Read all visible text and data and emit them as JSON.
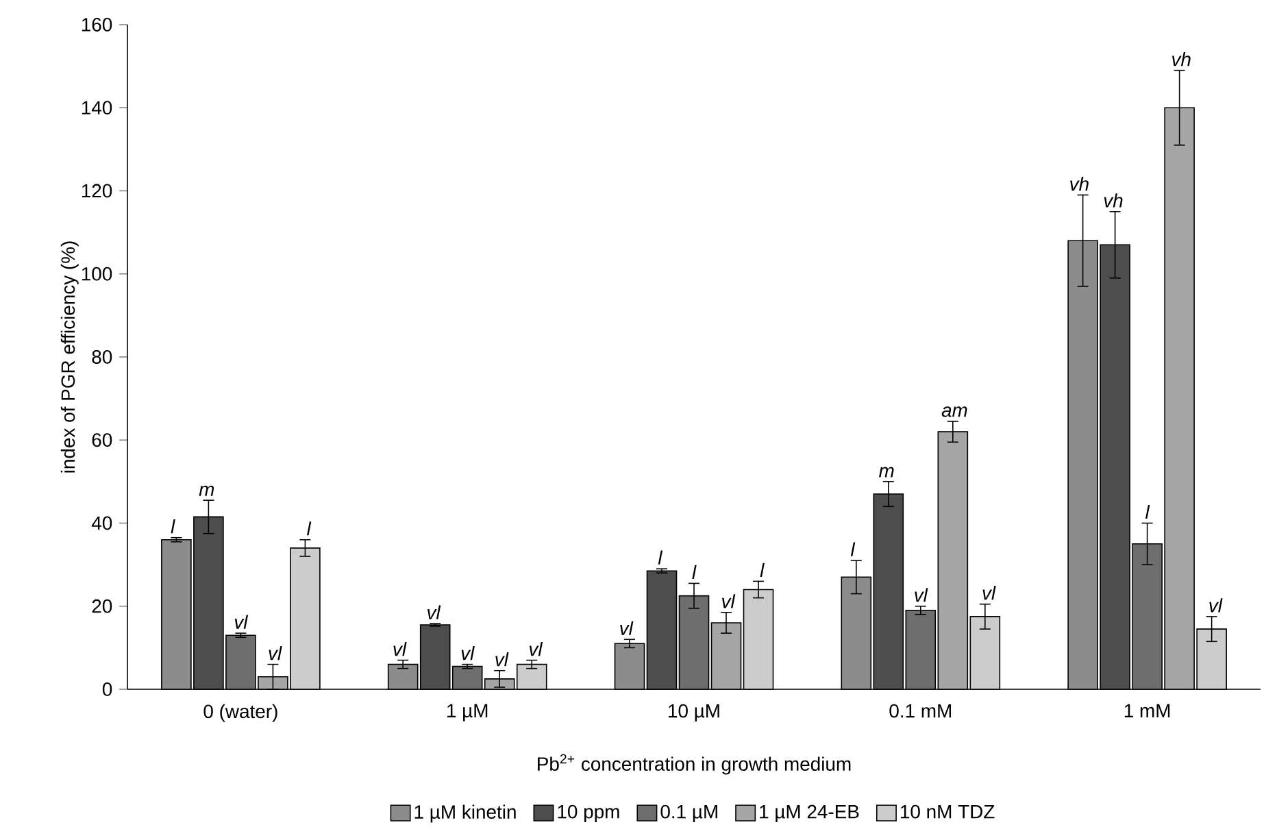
{
  "chart_data": {
    "type": "bar",
    "xlabel": "Pb$^{2+}$ concentration in growth medium",
    "ylabel": "index of PGR efficiency (%)",
    "categories": [
      "0 (water)",
      "1 µM",
      "10 µM",
      "0.1 mM",
      "1 mM"
    ],
    "ylim": [
      0,
      160
    ],
    "yticks": [
      0,
      20,
      40,
      60,
      80,
      100,
      120,
      140,
      160
    ],
    "legend": "bottom",
    "series": [
      {
        "name": "1 µM kinetin",
        "color": "#8c8c8c",
        "values": [
          36,
          6,
          11,
          27,
          108
        ],
        "errors": [
          0.5,
          1,
          1,
          4,
          11
        ],
        "value_labels": [
          "l",
          "vl",
          "vl",
          "l",
          "vh"
        ]
      },
      {
        "name": "10 ppm",
        "color": "#4d4d4d",
        "values": [
          41.5,
          15.5,
          28.5,
          47,
          107
        ],
        "errors": [
          4,
          0.3,
          0.5,
          3,
          8
        ],
        "value_labels": [
          "m",
          "vl",
          "l",
          "m",
          "vh"
        ]
      },
      {
        "name": "0.1 µM",
        "color": "#6e6e6e",
        "values": [
          13,
          5.5,
          22.5,
          19,
          35
        ],
        "errors": [
          0.5,
          0.5,
          3,
          1,
          5
        ],
        "value_labels": [
          "vl",
          "vl",
          "l",
          "vl",
          "l"
        ]
      },
      {
        "name": "1 µM 24-EB",
        "color": "#a6a6a6",
        "values": [
          3,
          2.5,
          16,
          62,
          140
        ],
        "errors": [
          3,
          2,
          2.5,
          2.5,
          9
        ],
        "value_labels": [
          "vl",
          "vl",
          "vl",
          "am",
          "vh"
        ]
      },
      {
        "name": "10 nM TDZ",
        "color": "#cccccc",
        "values": [
          34,
          6,
          24,
          17.5,
          14.5
        ],
        "errors": [
          2,
          1,
          2,
          3,
          3
        ],
        "value_labels": [
          "l",
          "vl",
          "l",
          "vl",
          "vl"
        ]
      }
    ]
  }
}
